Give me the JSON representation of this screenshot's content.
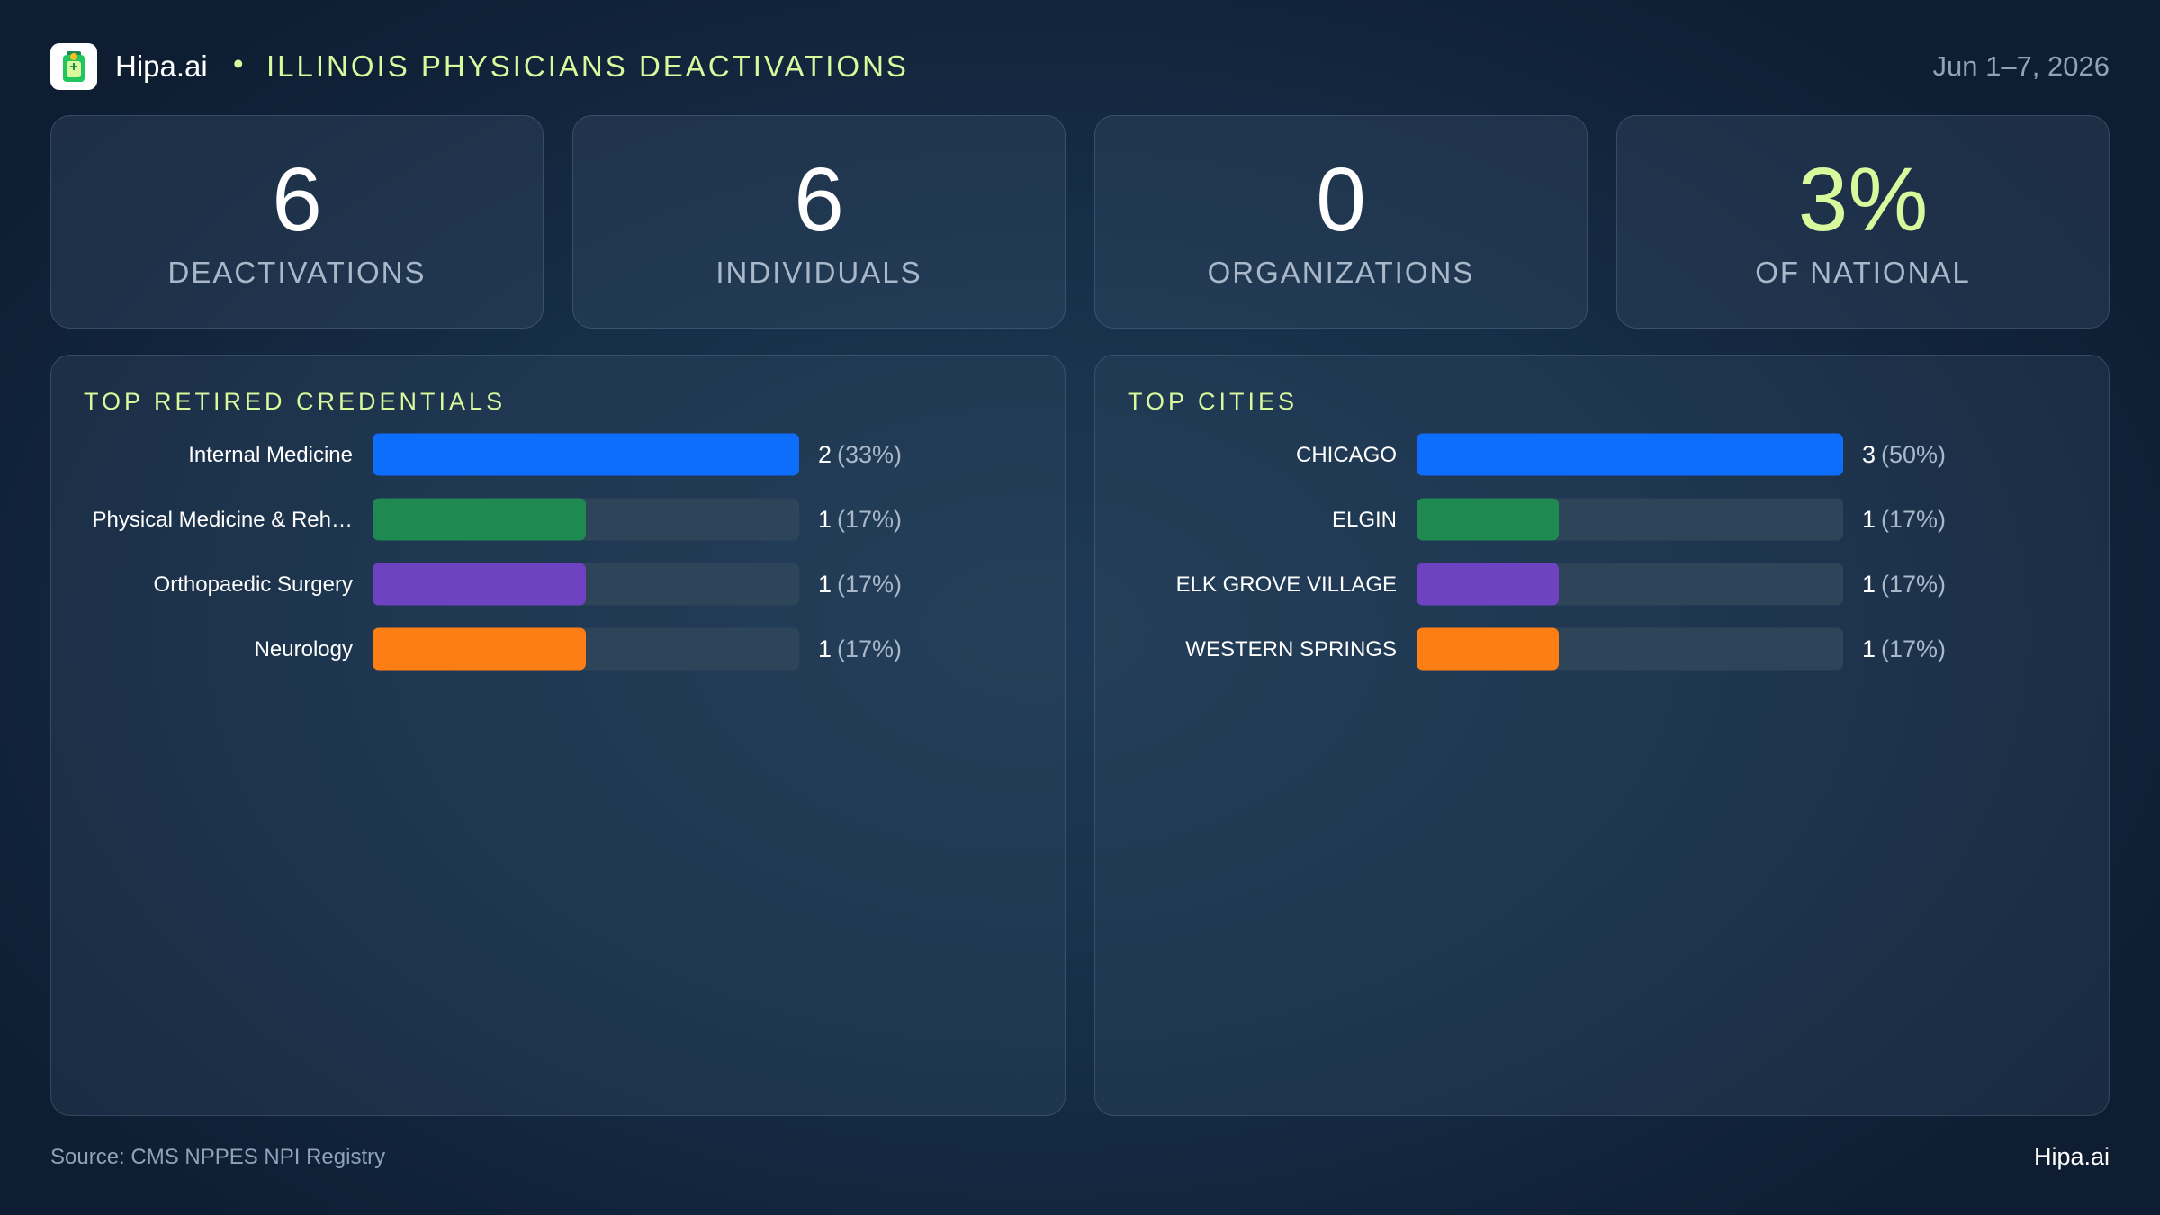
{
  "header": {
    "brand": "Hipa.ai",
    "bullet": "•",
    "title": "ILLINOIS PHYSICIANS DEACTIVATIONS",
    "date": "Jun 1–7, 2026",
    "logo_icon": "clipboard-cup-icon"
  },
  "kpis": [
    {
      "value": "6",
      "label": "DEACTIVATIONS"
    },
    {
      "value": "6",
      "label": "INDIVIDUALS"
    },
    {
      "value": "0",
      "label": "ORGANIZATIONS"
    },
    {
      "value": "3%",
      "label": "OF NATIONAL"
    }
  ],
  "colors": {
    "accent": "#d9f99d",
    "bar_blue": "#0d6efd",
    "bar_green": "#1e8a52",
    "bar_purple": "#6f42c1",
    "bar_orange": "#fd7e14",
    "bar_track": "#2e4459"
  },
  "chart_data": [
    {
      "type": "bar",
      "orientation": "horizontal",
      "title": "TOP RETIRED CREDENTIALS",
      "categories": [
        "Internal Medicine",
        "Physical Medicine & Reh…",
        "Orthopaedic Surgery",
        "Neurology"
      ],
      "values": [
        2,
        1,
        1,
        1
      ],
      "value_labels": [
        "2",
        "1",
        "1",
        "1"
      ],
      "percent_labels": [
        "(33%)",
        "(17%)",
        "(17%)",
        "(17%)"
      ],
      "max": 2,
      "colors": [
        "#0d6efd",
        "#1e8a52",
        "#6f42c1",
        "#fd7e14"
      ]
    },
    {
      "type": "bar",
      "orientation": "horizontal",
      "title": "TOP CITIES",
      "categories": [
        "CHICAGO",
        "ELGIN",
        "ELK GROVE VILLAGE",
        "WESTERN SPRINGS"
      ],
      "values": [
        3,
        1,
        1,
        1
      ],
      "value_labels": [
        "3",
        "1",
        "1",
        "1"
      ],
      "percent_labels": [
        "(50%)",
        "(17%)",
        "(17%)",
        "(17%)"
      ],
      "max": 3,
      "colors": [
        "#0d6efd",
        "#1e8a52",
        "#6f42c1",
        "#fd7e14"
      ]
    }
  ],
  "footer": {
    "source": "Source: CMS NPPES NPI Registry",
    "brand": "Hipa.ai"
  }
}
